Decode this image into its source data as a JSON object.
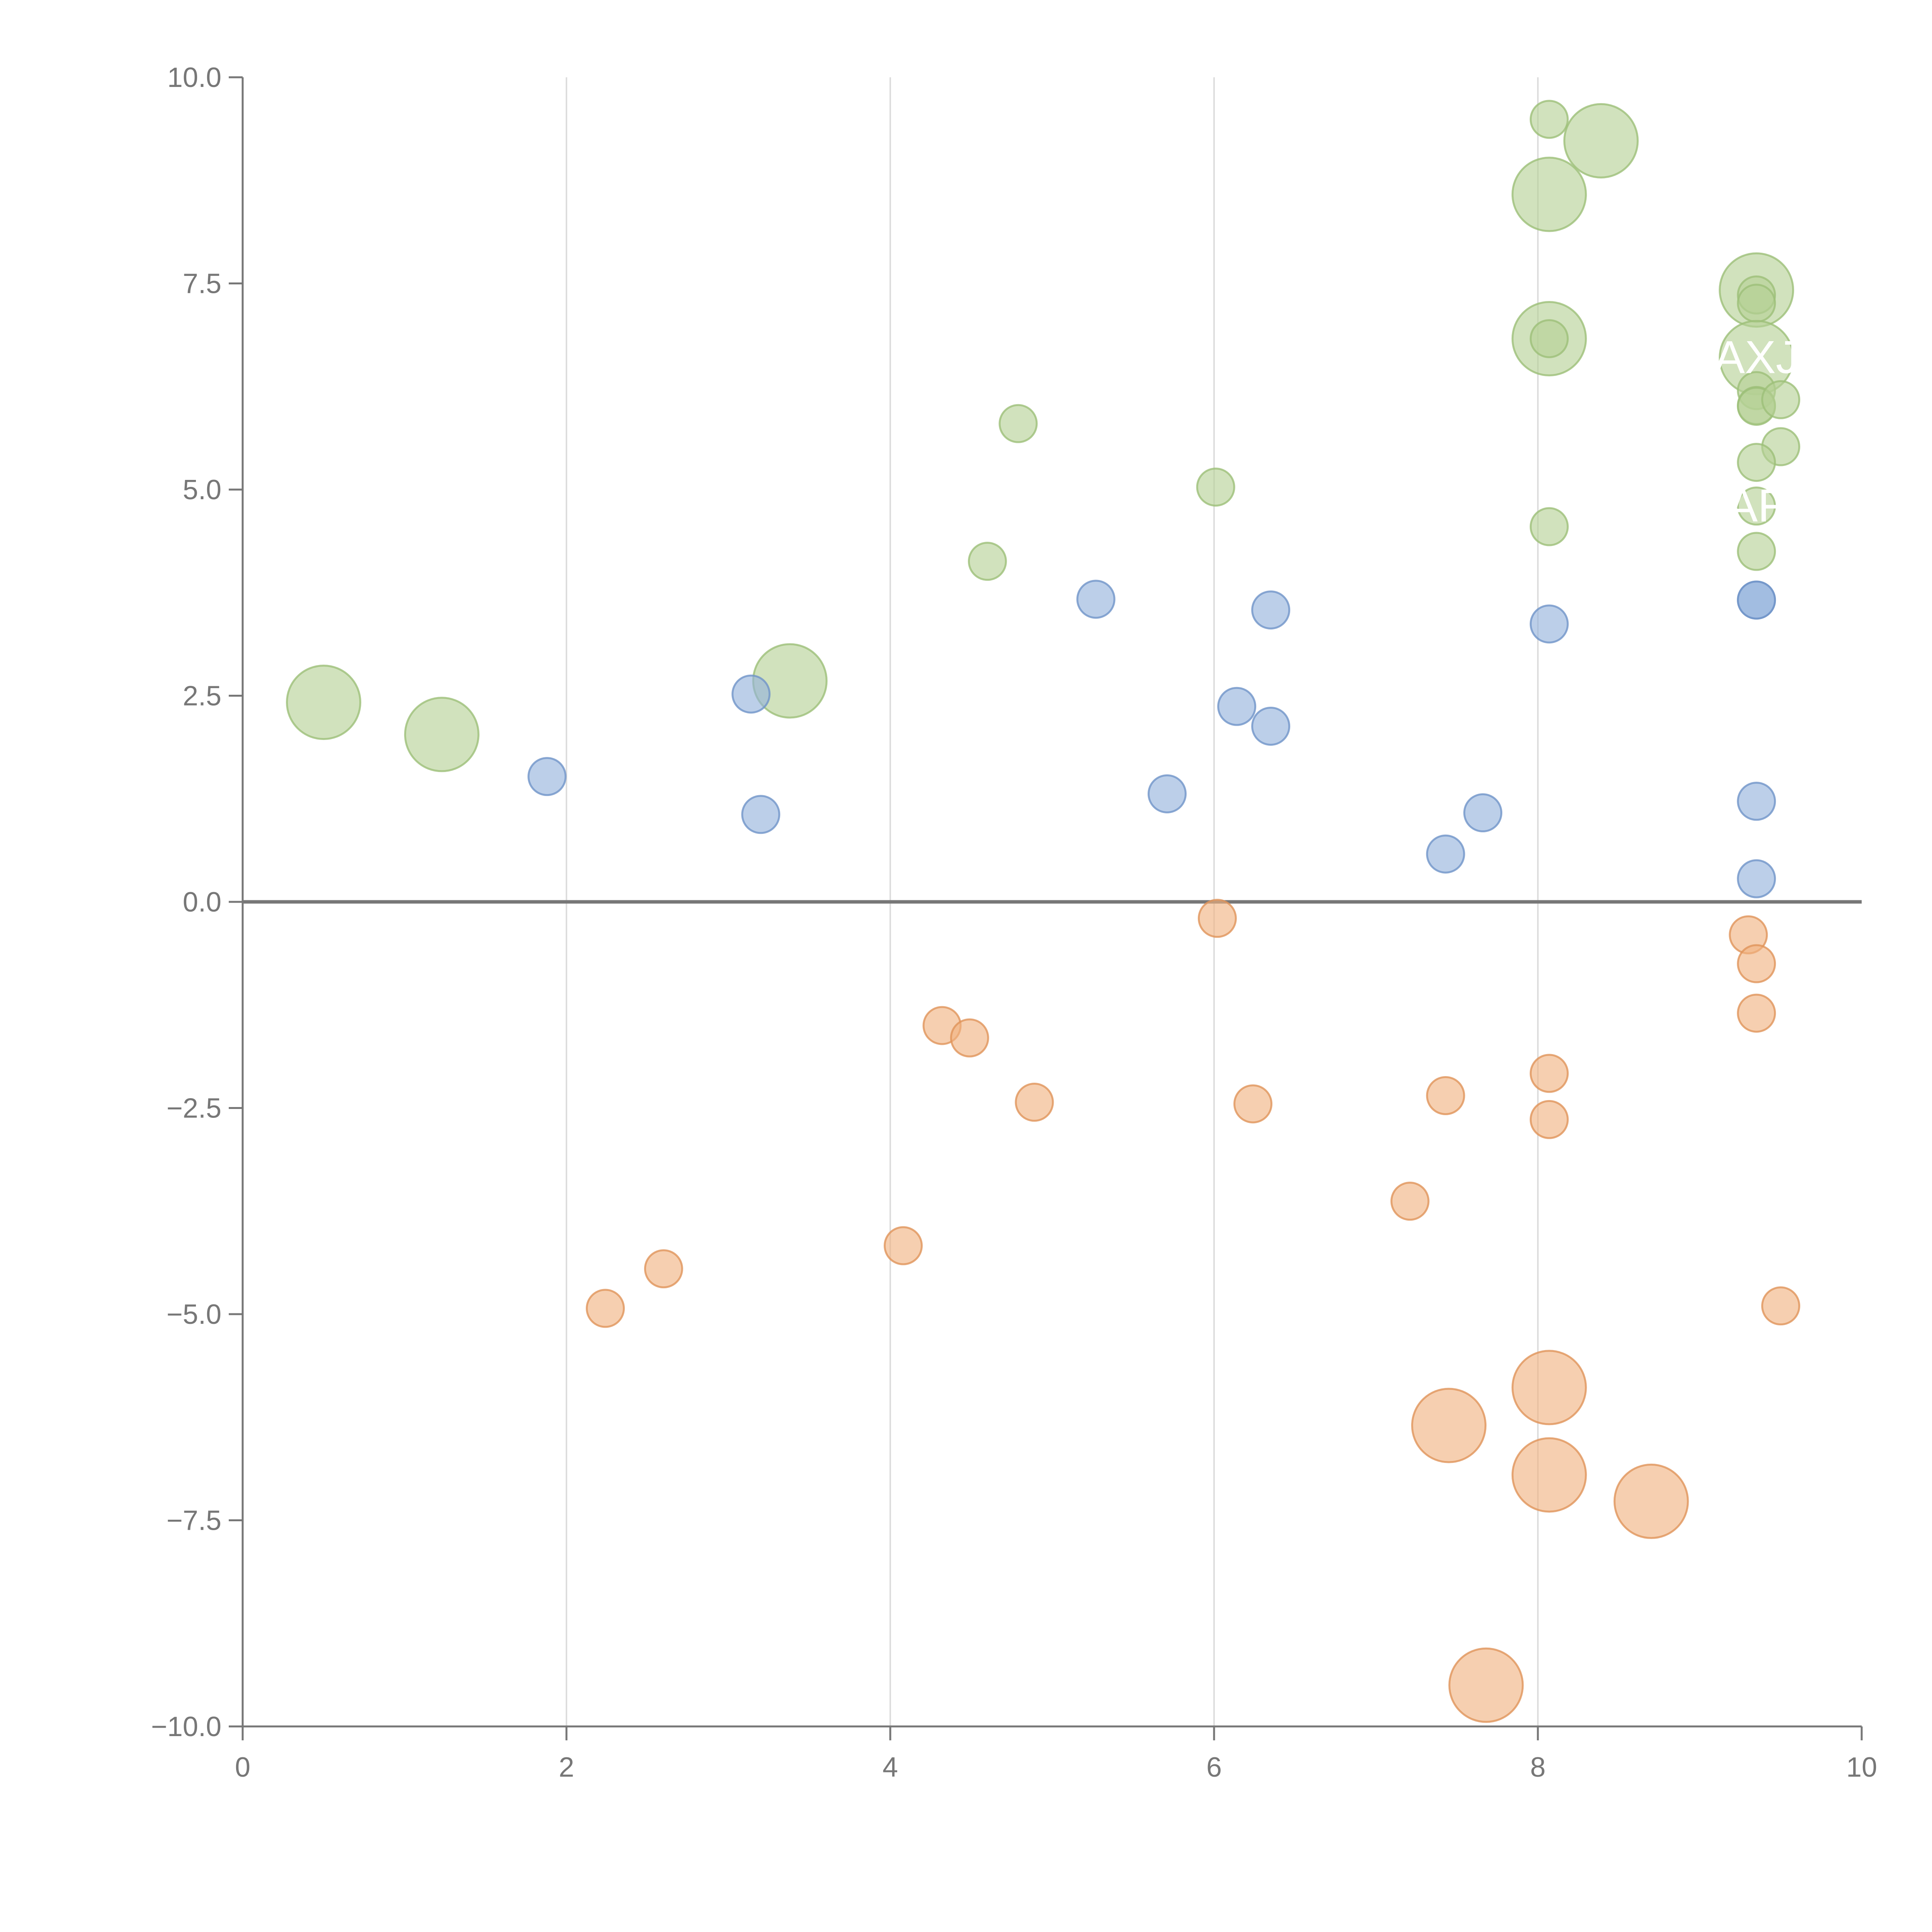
{
  "chart_data": {
    "type": "scatter",
    "title": "",
    "xlabel": "",
    "ylabel": "",
    "xlim": [
      0,
      10
    ],
    "ylim": [
      -10,
      10
    ],
    "x_ticks": [
      0,
      2,
      4,
      6,
      8,
      10
    ],
    "x_tick_labels": [
      "0",
      "2",
      "4",
      "6",
      "8",
      "10"
    ],
    "y_ticks": [
      10,
      7.5,
      5,
      2.5,
      0,
      -2.5,
      -5,
      -7.5,
      -10
    ],
    "y_tick_labels": [
      "10.0",
      "7.5",
      "5.0",
      "2.5",
      "0.0",
      "−2.5",
      "−5.0",
      "−7.5",
      "−10.0"
    ],
    "grid": "vertical",
    "zero_line": true,
    "colors": {
      "green": "#b5d195",
      "green_stroke": "#9cbf78",
      "blue": "#93b1db",
      "blue_stroke": "#6f93c8",
      "orange": "#f0b27f",
      "orange_stroke": "#e0935a",
      "axis": "#777777",
      "grid": "#dddddd"
    },
    "series": [
      {
        "name": "green",
        "color": "green",
        "points": [
          {
            "x": 0.5,
            "y": 2.42,
            "size": "large"
          },
          {
            "x": 1.23,
            "y": 2.03,
            "size": "large"
          },
          {
            "x": 3.38,
            "y": 2.68,
            "size": "large"
          },
          {
            "x": 4.6,
            "y": 4.13,
            "size": "small"
          },
          {
            "x": 4.79,
            "y": 5.8,
            "size": "small"
          },
          {
            "x": 6.01,
            "y": 5.03,
            "size": "small"
          },
          {
            "x": 8.07,
            "y": 9.49,
            "size": "small"
          },
          {
            "x": 8.39,
            "y": 9.23,
            "size": "large"
          },
          {
            "x": 8.07,
            "y": 8.58,
            "size": "large"
          },
          {
            "x": 8.07,
            "y": 6.83,
            "size": "large"
          },
          {
            "x": 8.07,
            "y": 6.83,
            "size": "small"
          },
          {
            "x": 8.07,
            "y": 4.55,
            "size": "small"
          },
          {
            "x": 9.35,
            "y": 7.42,
            "size": "large"
          },
          {
            "x": 9.35,
            "y": 7.36,
            "size": "small"
          },
          {
            "x": 9.35,
            "y": 7.26,
            "size": "small"
          },
          {
            "x": 9.35,
            "y": 6.6,
            "size": "large",
            "label": "AXJ"
          },
          {
            "x": 9.35,
            "y": 6.2,
            "size": "small"
          },
          {
            "x": 9.35,
            "y": 6.02,
            "size": "small"
          },
          {
            "x": 9.35,
            "y": 6.01,
            "size": "small"
          },
          {
            "x": 9.5,
            "y": 6.09,
            "size": "small"
          },
          {
            "x": 9.5,
            "y": 5.52,
            "size": "small"
          },
          {
            "x": 9.35,
            "y": 5.33,
            "size": "small"
          },
          {
            "x": 9.35,
            "y": 4.8,
            "size": "small",
            "label": "AF"
          },
          {
            "x": 9.35,
            "y": 4.25,
            "size": "small"
          }
        ]
      },
      {
        "name": "blue",
        "color": "blue",
        "points": [
          {
            "x": 1.88,
            "y": 1.52,
            "size": "small"
          },
          {
            "x": 3.14,
            "y": 2.52,
            "size": "small"
          },
          {
            "x": 3.2,
            "y": 1.06,
            "size": "small"
          },
          {
            "x": 5.27,
            "y": 3.67,
            "size": "small"
          },
          {
            "x": 5.71,
            "y": 1.31,
            "size": "small"
          },
          {
            "x": 6.14,
            "y": 2.37,
            "size": "small"
          },
          {
            "x": 6.35,
            "y": 3.54,
            "size": "small"
          },
          {
            "x": 6.35,
            "y": 2.13,
            "size": "small"
          },
          {
            "x": 7.43,
            "y": 0.58,
            "size": "small"
          },
          {
            "x": 7.66,
            "y": 1.08,
            "size": "small"
          },
          {
            "x": 8.07,
            "y": 3.37,
            "size": "small"
          },
          {
            "x": 9.35,
            "y": 3.66,
            "size": "small"
          },
          {
            "x": 9.35,
            "y": 3.66,
            "size": "small"
          },
          {
            "x": 9.35,
            "y": 1.22,
            "size": "small"
          },
          {
            "x": 9.35,
            "y": 0.28,
            "size": "small"
          }
        ]
      },
      {
        "name": "orange",
        "color": "orange",
        "points": [
          {
            "x": 6.02,
            "y": -0.2,
            "size": "small"
          },
          {
            "x": 9.3,
            "y": -0.4,
            "size": "small"
          },
          {
            "x": 9.35,
            "y": -0.75,
            "size": "small"
          },
          {
            "x": 9.35,
            "y": -1.35,
            "size": "small"
          },
          {
            "x": 4.32,
            "y": -1.5,
            "size": "small"
          },
          {
            "x": 4.49,
            "y": -1.65,
            "size": "small"
          },
          {
            "x": 4.89,
            "y": -2.43,
            "size": "small"
          },
          {
            "x": 6.24,
            "y": -2.45,
            "size": "small"
          },
          {
            "x": 7.43,
            "y": -2.35,
            "size": "small"
          },
          {
            "x": 8.07,
            "y": -2.08,
            "size": "small"
          },
          {
            "x": 8.07,
            "y": -2.64,
            "size": "small"
          },
          {
            "x": 7.21,
            "y": -3.63,
            "size": "small"
          },
          {
            "x": 4.08,
            "y": -4.17,
            "size": "small"
          },
          {
            "x": 2.6,
            "y": -4.45,
            "size": "small"
          },
          {
            "x": 2.24,
            "y": -4.93,
            "size": "small"
          },
          {
            "x": 9.5,
            "y": -4.9,
            "size": "small"
          },
          {
            "x": 8.07,
            "y": -5.89,
            "size": "large"
          },
          {
            "x": 7.45,
            "y": -6.35,
            "size": "large"
          },
          {
            "x": 8.07,
            "y": -6.95,
            "size": "large"
          },
          {
            "x": 8.7,
            "y": -7.27,
            "size": "large"
          },
          {
            "x": 7.68,
            "y": -9.5,
            "size": "large"
          }
        ]
      }
    ]
  }
}
